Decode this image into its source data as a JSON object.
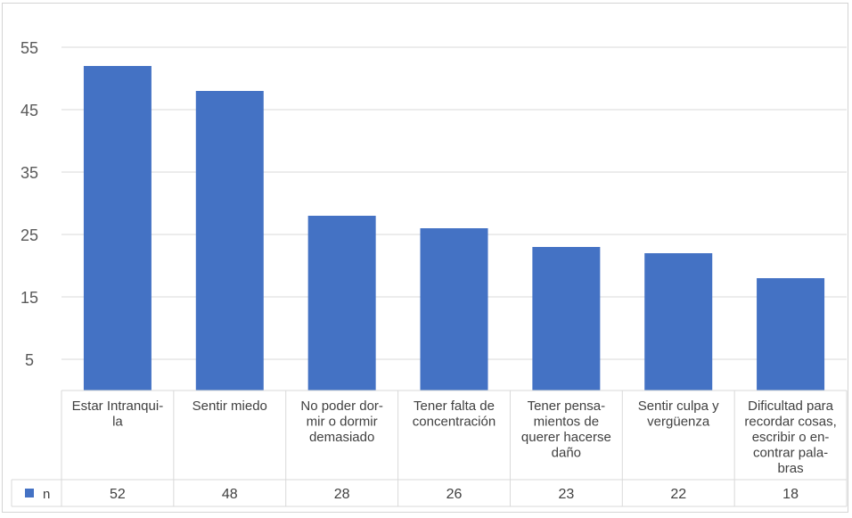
{
  "chart_data": {
    "type": "bar",
    "title": "",
    "xlabel": "",
    "ylabel": "",
    "ylim": [
      0,
      60
    ],
    "yticks": [
      5,
      15,
      25,
      35,
      45,
      55
    ],
    "grid": true,
    "legend_placement": "data-table-left",
    "categories": [
      [
        "Estar Intranqui-",
        "la"
      ],
      [
        "Sentir miedo"
      ],
      [
        "No poder dor-",
        "mir o dormir",
        "demasiado"
      ],
      [
        "Tener falta de",
        "concentración"
      ],
      [
        "Tener pensa-",
        "mientos de",
        "querer hacerse",
        "daño"
      ],
      [
        "Sentir culpa y",
        "vergüenza"
      ],
      [
        "Dificultad para",
        "recordar cosas,",
        "escribir o en-",
        "contrar pala-",
        "bras"
      ]
    ],
    "series": [
      {
        "name": "n",
        "color": "#4472C4",
        "values": [
          52,
          48,
          28,
          26,
          23,
          22,
          18
        ]
      }
    ]
  }
}
